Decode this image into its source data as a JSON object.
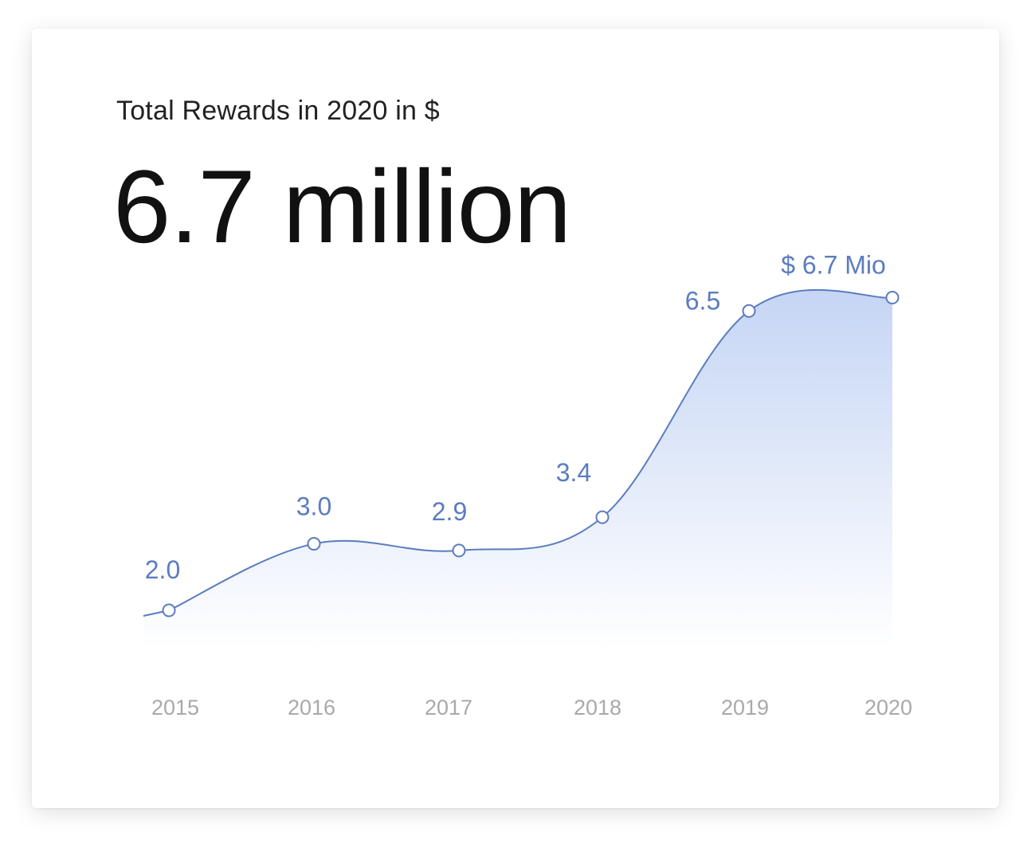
{
  "card": {
    "subtitle": "Total Rewards in 2020 in $",
    "headline": "6.7 million"
  },
  "colors": {
    "line": "#5b7cbf",
    "label": "#5b7cbf",
    "area_top": "#c5d5f4",
    "area_bottom": "#ffffff",
    "tick": "#a9a9a9"
  },
  "chart_data": {
    "type": "area",
    "title": "Total Rewards in 2020 in $",
    "xlabel": "",
    "ylabel": "",
    "categories": [
      "2015",
      "2016",
      "2017",
      "2018",
      "2019",
      "2020"
    ],
    "series": [
      {
        "values": [
          2.0,
          3.0,
          2.9,
          3.4,
          6.5,
          6.7
        ],
        "point_labels": [
          "2.0",
          "3.0",
          "2.9",
          "3.4",
          "6.5",
          "$ 6.7 Mio"
        ]
      }
    ],
    "grid": false,
    "legend": "none"
  }
}
